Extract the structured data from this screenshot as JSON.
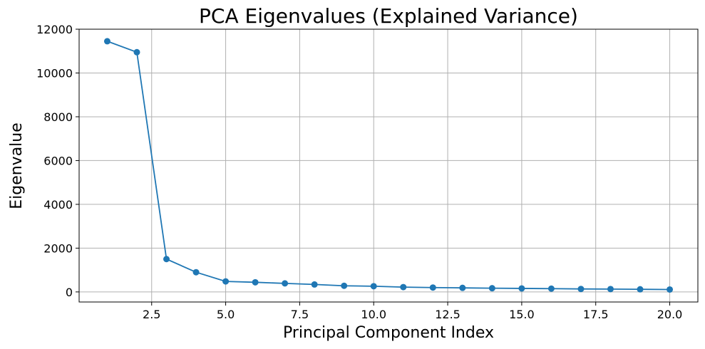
{
  "chart_data": {
    "type": "line",
    "title": "PCA Eigenvalues (Explained Variance)",
    "xlabel": "Principal Component Index",
    "ylabel": "Eigenvalue",
    "xlim": [
      0.05,
      20.95
    ],
    "ylim": [
      -460,
      12000
    ],
    "xticks": [
      2.5,
      5.0,
      7.5,
      10.0,
      12.5,
      15.0,
      17.5,
      20.0
    ],
    "xtick_labels": [
      "2.5",
      "5.0",
      "7.5",
      "10.0",
      "12.5",
      "15.0",
      "17.5",
      "20.0"
    ],
    "yticks": [
      0,
      2000,
      4000,
      6000,
      8000,
      10000,
      12000
    ],
    "ytick_labels": [
      "0",
      "2000",
      "4000",
      "6000",
      "8000",
      "10000",
      "12000"
    ],
    "grid": true,
    "series": [
      {
        "color": "#1f77b4",
        "marker": "circle",
        "x": [
          1,
          2,
          3,
          4,
          5,
          6,
          7,
          8,
          9,
          10,
          11,
          12,
          13,
          14,
          15,
          16,
          17,
          18,
          19,
          20
        ],
        "y": [
          11450,
          10950,
          1500,
          900,
          480,
          440,
          390,
          340,
          280,
          260,
          220,
          200,
          185,
          170,
          160,
          150,
          135,
          130,
          120,
          110
        ]
      }
    ]
  }
}
